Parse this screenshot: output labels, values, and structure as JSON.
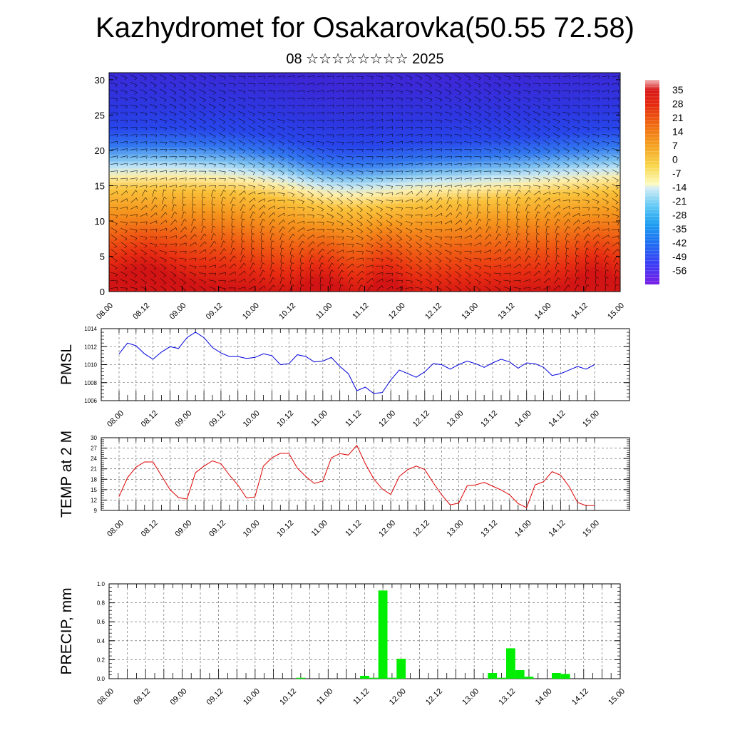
{
  "title": "Kazhydromet for Osakarovka(50.55 72.58)",
  "subtitle": "08 ☆☆☆☆☆☆☆☆ 2025",
  "chart_data": [
    {
      "type": "heatmap",
      "name": "vertical cross-section",
      "yticks": [
        "0",
        "5",
        "10",
        "15",
        "20",
        "25",
        "30"
      ],
      "ylim": [
        0,
        31
      ],
      "xticks": [
        "08.00",
        "08.12",
        "09.00",
        "09.12",
        "10.00",
        "10.12",
        "11.00",
        "11.12",
        "12.00",
        "12.12",
        "13.00",
        "13.12",
        "14.00",
        "14.12",
        "15.00"
      ],
      "colorbar_labels": [
        "35",
        "28",
        "21",
        "14",
        "7",
        "0",
        "-7",
        "-14",
        "-21",
        "-28",
        "-35",
        "-42",
        "-49",
        "-56"
      ],
      "colorbar_range": [
        -63,
        40
      ],
      "overlay": "wind barbs"
    },
    {
      "type": "line",
      "ylabel": "PMSL",
      "ylim": [
        1006,
        1014
      ],
      "yticks": [
        "1006",
        "1008",
        "1010",
        "1012",
        "1014"
      ],
      "xticks": [
        "08.00",
        "08.12",
        "09.00",
        "09.12",
        "10.00",
        "10.12",
        "11.00",
        "11.12",
        "12.00",
        "12.12",
        "13.00",
        "13.12",
        "14.00",
        "14.12",
        "15.00"
      ],
      "color": "#0000dd",
      "grid": true,
      "values": [
        1011.2,
        1012.4,
        1012.1,
        1011.2,
        1010.6,
        1011.4,
        1012.0,
        1011.8,
        1013.0,
        1013.6,
        1013.0,
        1011.9,
        1011.3,
        1010.9,
        1010.9,
        1010.7,
        1010.8,
        1011.2,
        1011.0,
        1010.0,
        1010.1,
        1011.1,
        1010.9,
        1010.3,
        1010.4,
        1010.8,
        1009.8,
        1009.0,
        1007.1,
        1007.5,
        1006.8,
        1006.9,
        1008.3,
        1009.4,
        1009.0,
        1008.6,
        1009.2,
        1010.1,
        1010.0,
        1009.5,
        1010.0,
        1010.4,
        1010.1,
        1009.7,
        1010.2,
        1010.6,
        1010.3,
        1009.6,
        1010.2,
        1010.1,
        1009.7,
        1008.8,
        1009.0,
        1009.4,
        1009.8,
        1009.5,
        1010.0
      ]
    },
    {
      "type": "line",
      "ylabel": "TEMP at 2 M",
      "ylim": [
        9,
        30
      ],
      "yticks": [
        "9",
        "12",
        "15",
        "18",
        "21",
        "24",
        "27",
        "30"
      ],
      "xticks": [
        "08.00",
        "08.12",
        "09.00",
        "09.12",
        "10.00",
        "10.12",
        "11.00",
        "11.12",
        "12.00",
        "12.12",
        "13.00",
        "13.12",
        "14.00",
        "14.12",
        "15.00"
      ],
      "color": "#dd0000",
      "grid": true,
      "values": [
        13.0,
        18.5,
        21.5,
        23.0,
        23.0,
        19.0,
        15.0,
        12.7,
        12.3,
        19.9,
        21.8,
        23.3,
        22.5,
        19.2,
        16.3,
        12.6,
        12.9,
        21.8,
        24.2,
        25.5,
        25.5,
        21.2,
        18.8,
        16.8,
        17.5,
        24.2,
        25.4,
        25.0,
        27.8,
        22.5,
        18.1,
        15.2,
        13.6,
        18.8,
        20.8,
        21.8,
        20.8,
        17.0,
        13.5,
        10.6,
        11.1,
        16.1,
        16.4,
        17.1,
        16.0,
        14.9,
        13.5,
        11.0,
        9.8,
        16.4,
        17.3,
        20.2,
        19.2,
        15.9,
        11.3,
        10.4,
        10.4
      ]
    },
    {
      "type": "bar",
      "ylabel": "PRECIP, mm",
      "ylim": [
        0,
        1.0
      ],
      "yticks": [
        "0.0",
        "0.2",
        "0.4",
        "0.6",
        "0.8",
        "1.0"
      ],
      "xticks": [
        "08.00",
        "08.12",
        "09.00",
        "09.12",
        "10.00",
        "10.12",
        "11.00",
        "11.12",
        "12.00",
        "12.12",
        "13.00",
        "13.12",
        "14.00",
        "14.12",
        "15.00"
      ],
      "color": "#00ee00",
      "grid": true,
      "bars": [
        {
          "x": 21,
          "value": 0.01
        },
        {
          "x": 28,
          "value": 0.03
        },
        {
          "x": 29,
          "value": 0.01
        },
        {
          "x": 30,
          "value": 0.93
        },
        {
          "x": 31,
          "value": 0.01
        },
        {
          "x": 32,
          "value": 0.21
        },
        {
          "x": 42,
          "value": 0.06
        },
        {
          "x": 43,
          "value": 0.01
        },
        {
          "x": 44,
          "value": 0.32
        },
        {
          "x": 45,
          "value": 0.09
        },
        {
          "x": 46,
          "value": 0.02
        },
        {
          "x": 49,
          "value": 0.06
        },
        {
          "x": 50,
          "value": 0.05
        }
      ]
    }
  ]
}
